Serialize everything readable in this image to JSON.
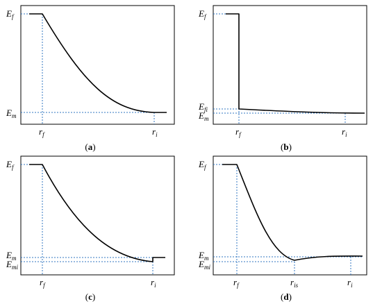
{
  "panels": [
    {
      "caption_letter": "a",
      "y_labels": [
        {
          "main": "E",
          "sub": "f"
        },
        {
          "main": "E",
          "sub": "m"
        }
      ],
      "x_labels": [
        {
          "main": "r",
          "sub": "f"
        },
        {
          "main": "r",
          "sub": "i"
        }
      ]
    },
    {
      "caption_letter": "b",
      "y_labels": [
        {
          "main": "E",
          "sub": "f"
        },
        {
          "main": "E",
          "sub": "fi"
        },
        {
          "main": "E",
          "sub": "m"
        }
      ],
      "x_labels": [
        {
          "main": "r",
          "sub": "f"
        },
        {
          "main": "r",
          "sub": "i"
        }
      ]
    },
    {
      "caption_letter": "c",
      "y_labels": [
        {
          "main": "E",
          "sub": "f"
        },
        {
          "main": "E",
          "sub": "m"
        },
        {
          "main": "E",
          "sub": "mi"
        }
      ],
      "x_labels": [
        {
          "main": "r",
          "sub": "f"
        },
        {
          "main": "r",
          "sub": "i"
        }
      ]
    },
    {
      "caption_letter": "d",
      "y_labels": [
        {
          "main": "E",
          "sub": "f"
        },
        {
          "main": "E",
          "sub": "m"
        },
        {
          "main": "E",
          "sub": "mi"
        }
      ],
      "x_labels": [
        {
          "main": "r",
          "sub": "f"
        },
        {
          "main": "r",
          "sub": "is"
        },
        {
          "main": "r",
          "sub": "i"
        }
      ]
    }
  ]
}
